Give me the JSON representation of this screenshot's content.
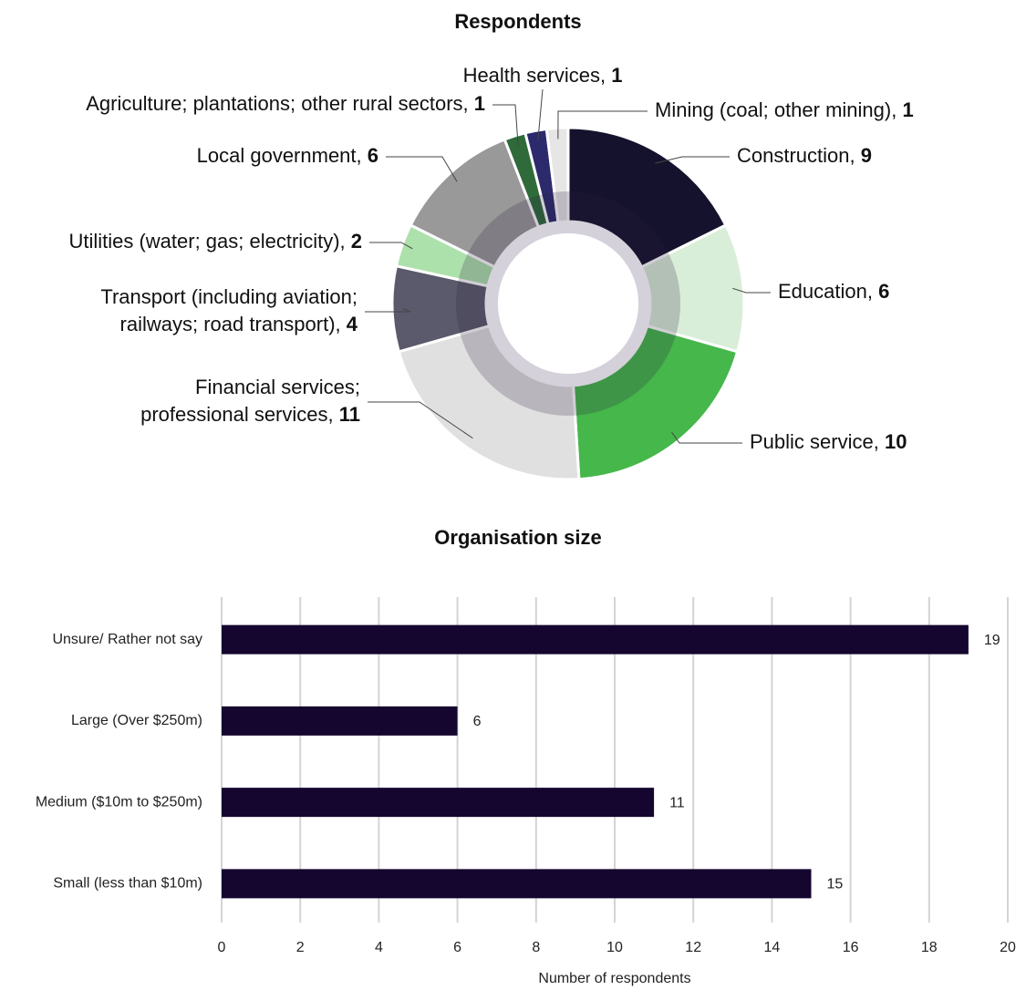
{
  "chart_data": [
    {
      "type": "donut",
      "title": "Respondents",
      "categories": [
        "Construction,",
        "Education,",
        "Public service,",
        "Financial services; professional services,",
        "Transport (including aviation; railways; road transport),",
        "Utilities (water; gas; electricity),",
        "Local government,",
        "Agriculture; plantations; other rural sectors,",
        "Health services,",
        "Mining (coal; other mining),"
      ],
      "values": [
        9,
        6,
        10,
        11,
        4,
        2,
        6,
        1,
        1,
        1
      ],
      "colors": [
        "#15122d",
        "#d9eed8",
        "#46b74b",
        "#e0e0e0",
        "#5b5a6c",
        "#ade1ac",
        "#999999",
        "#2f6a3b",
        "#2c2a6c",
        "#e6e6e6"
      ]
    },
    {
      "type": "hbar",
      "title": "Organisation size",
      "categories": [
        "Unsure/ Rather not say",
        "Large (Over $250m)",
        "Medium ($10m to $250m)",
        "Small (less than $10m)"
      ],
      "values": [
        19,
        6,
        11,
        15
      ],
      "color": "#15062f",
      "xlabel": "Number of respondents",
      "xlim": [
        0,
        20
      ],
      "xticks": [
        0,
        2,
        4,
        6,
        8,
        10,
        12,
        14,
        16,
        18,
        20
      ],
      "grid": true
    }
  ]
}
